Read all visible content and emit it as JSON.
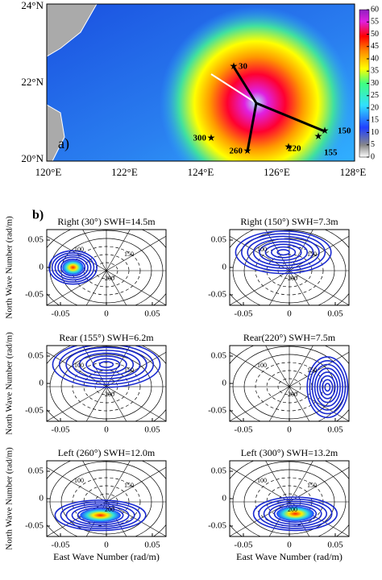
{
  "map": {
    "panel_label": "a)",
    "lat_ticks": [
      "24°N",
      "22°N",
      "20°N"
    ],
    "lon_ticks": [
      "120°E",
      "122°E",
      "124°E",
      "126°E",
      "128°E"
    ],
    "colorbar_ticks": [
      0,
      5,
      10,
      15,
      20,
      25,
      30,
      35,
      40,
      45,
      50,
      55,
      60
    ],
    "points": [
      "30",
      "150",
      "155",
      "220",
      "260",
      "300"
    ]
  },
  "spectra": {
    "panel_label": "b)",
    "titles": [
      "Right (30°) SWH=14.5m",
      "Right (150°) SWH=7.3m",
      "Rear (155°) SWH=6.2m",
      "Rear(220°) SWH=7.5m",
      "Left (260°) SWH=12.0m",
      "Left (300°) SWH=13.2m"
    ],
    "xticks": [
      "-0.05",
      "0",
      "0.05"
    ],
    "yticks": [
      "0.05",
      "0",
      "-0.05"
    ],
    "xlabel": "East Wave Number (rad/m)",
    "ylabel": "North Wave Number (rad/m)",
    "contour_labels": [
      "100",
      "150",
      "200"
    ]
  }
}
